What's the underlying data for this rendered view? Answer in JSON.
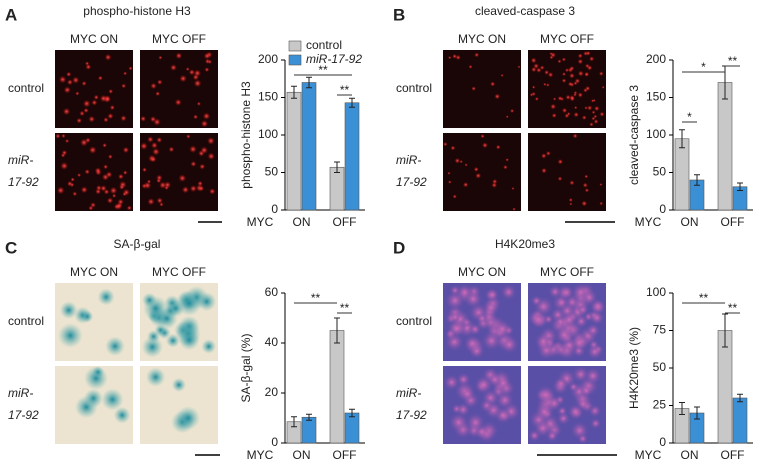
{
  "panels": [
    {
      "letter": "A",
      "image_title": "phospho-histone H3",
      "columns": [
        "MYC ON",
        "MYC OFF"
      ],
      "rows": [
        {
          "label_lines": [
            "control"
          ]
        },
        {
          "label_lines": [
            "miR-",
            "17-92"
          ]
        }
      ]
    },
    {
      "letter": "B",
      "image_title": "cleaved-caspase 3",
      "columns": [
        "MYC ON",
        "MYC OFF"
      ],
      "rows": [
        {
          "label_lines": [
            "control"
          ]
        },
        {
          "label_lines": [
            "miR-",
            "17-92"
          ]
        }
      ]
    },
    {
      "letter": "C",
      "image_title": "SA-β-gal",
      "columns": [
        "MYC ON",
        "MYC OFF"
      ],
      "rows": [
        {
          "label_lines": [
            "control"
          ]
        },
        {
          "label_lines": [
            "miR-",
            "17-92"
          ]
        }
      ]
    },
    {
      "letter": "D",
      "image_title": "H4K20me3",
      "columns": [
        "MYC ON",
        "MYC OFF"
      ],
      "rows": [
        {
          "label_lines": [
            "control"
          ]
        },
        {
          "label_lines": [
            "miR-",
            "17-92"
          ]
        }
      ]
    }
  ],
  "chart_data": [
    {
      "type": "bar",
      "ylabel": "phospho-histone H3",
      "xlabel": "MYC",
      "categories": [
        "ON",
        "OFF"
      ],
      "series": [
        {
          "name": "control",
          "color": "#c8c8c8",
          "values": [
            157,
            57
          ],
          "errors": [
            8,
            7
          ]
        },
        {
          "name": "miR-17-92",
          "color": "#3b8fd4",
          "values": [
            170,
            143
          ],
          "errors": [
            7,
            6
          ]
        }
      ],
      "ylim": [
        0,
        200
      ],
      "yticks": [
        0,
        50,
        100,
        150,
        200
      ],
      "legend": "top-left",
      "annotations": [
        "**",
        "**"
      ]
    },
    {
      "type": "bar",
      "ylabel": "cleaved-caspase 3",
      "xlabel": "MYC",
      "categories": [
        "ON",
        "OFF"
      ],
      "series": [
        {
          "color": "#c8c8c8",
          "values": [
            95,
            170
          ],
          "errors": [
            12,
            22
          ]
        },
        {
          "color": "#3b8fd4",
          "values": [
            40,
            31
          ],
          "errors": [
            7,
            5
          ]
        }
      ],
      "ylim": [
        0,
        200
      ],
      "yticks": [
        0,
        50,
        100,
        150,
        200
      ],
      "annotations": [
        "*",
        "*",
        "**"
      ]
    },
    {
      "type": "bar",
      "ylabel": "SA-β-gal (%)",
      "xlabel": "MYC",
      "categories": [
        "ON",
        "OFF"
      ],
      "series": [
        {
          "color": "#c8c8c8",
          "values": [
            8.5,
            45
          ],
          "errors": [
            2,
            5
          ]
        },
        {
          "color": "#3b8fd4",
          "values": [
            10.3,
            12
          ],
          "errors": [
            1.2,
            1.5
          ]
        }
      ],
      "ylim": [
        0,
        60
      ],
      "yticks": [
        0,
        20,
        40,
        60
      ],
      "annotations": [
        "**",
        "**"
      ]
    },
    {
      "type": "bar",
      "ylabel": "H4K20me3 (%)",
      "xlabel": "MYC",
      "categories": [
        "ON",
        "OFF"
      ],
      "series": [
        {
          "color": "#c8c8c8",
          "values": [
            23,
            75
          ],
          "errors": [
            4,
            11
          ]
        },
        {
          "color": "#3b8fd4",
          "values": [
            20,
            30
          ],
          "errors": [
            4,
            2.5
          ]
        }
      ],
      "ylim": [
        0,
        100
      ],
      "yticks": [
        0,
        25,
        50,
        75,
        100
      ],
      "annotations": [
        "**",
        "**"
      ]
    }
  ]
}
